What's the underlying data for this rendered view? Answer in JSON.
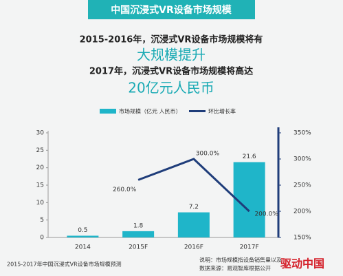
{
  "chart_data": {
    "type": "bar",
    "title": "中国沉浸式VR设备市场规模",
    "subtitle_lines": [
      "2015-2016年，沉浸式VR设备市场规模将有",
      "大规模提升",
      "2017年，沉浸式VR设备市场规模将高达",
      "20亿元人民币"
    ],
    "categories": [
      "2014",
      "2015F",
      "2016F",
      "2017F"
    ],
    "series": [
      {
        "name": "市场规模（亿元 人民币）",
        "type": "bar",
        "color": "#1fb5c9",
        "values": [
          0.5,
          1.8,
          7.2,
          21.6
        ]
      },
      {
        "name": "环比增长率",
        "type": "line",
        "axis": "y2",
        "color": "#1f3d7a",
        "values": [
          null,
          260,
          300,
          200
        ],
        "value_labels": [
          null,
          "260.0%",
          "300.0%",
          "200.0%"
        ]
      }
    ],
    "ylim": [
      0,
      30
    ],
    "yticks": [
      0,
      5,
      10,
      15,
      20,
      25,
      30
    ],
    "y2lim": [
      150,
      350
    ],
    "y2ticks": [
      {
        "value": 150,
        "label": "150%"
      },
      {
        "value": 200,
        "label": "200%"
      },
      {
        "value": 250,
        "label": "250%"
      },
      {
        "value": 300,
        "label": "300%"
      },
      {
        "value": 350,
        "label": "350%"
      }
    ],
    "caption": "2015-2017年中国沉浸式VR设备市场规模预测",
    "notes": [
      "说明：市场规模指设备销售量以及",
      "数据来源：易观智库根据公开"
    ],
    "watermark": "驱动中国"
  }
}
